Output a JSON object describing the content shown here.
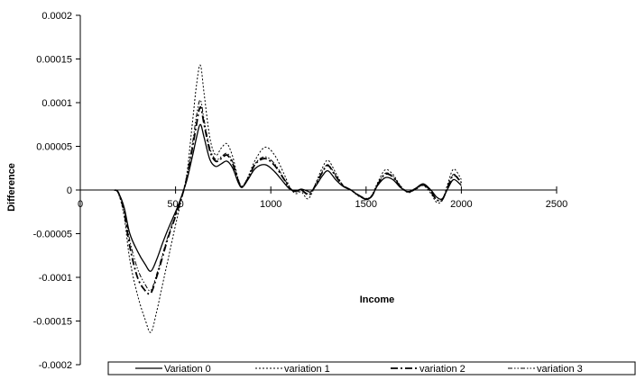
{
  "chart_data": {
    "type": "line",
    "title": "",
    "xlabel": "Income",
    "ylabel": "Difference",
    "xlim": [
      0,
      2500
    ],
    "ylim": [
      -0.0002,
      0.0002
    ],
    "x_ticks": [
      0,
      500,
      1000,
      1500,
      2000,
      2500
    ],
    "x_tick_labels": [
      "0",
      "500",
      "1000",
      "1500",
      "2000",
      "2500"
    ],
    "y_ticks": [
      0.0002,
      0.00015,
      0.0001,
      5e-05,
      0,
      -5e-05,
      -0.0001,
      -0.00015,
      -0.0002
    ],
    "y_tick_labels": [
      "0.0002",
      "0.00015",
      "0.0001",
      "0.00005",
      "0",
      "-0.00005",
      "-0.0001",
      "-0.00015",
      "-0.0002"
    ],
    "grid": false,
    "legend_position": "bottom",
    "x": [
      180,
      200,
      230,
      260,
      300,
      340,
      370,
      400,
      430,
      460,
      500,
      530,
      560,
      590,
      610,
      630,
      650,
      680,
      710,
      740,
      770,
      800,
      830,
      850,
      880,
      920,
      970,
      1020,
      1070,
      1100,
      1130,
      1160,
      1190,
      1210,
      1240,
      1270,
      1300,
      1340,
      1380,
      1420,
      1460,
      1500,
      1530,
      1560,
      1600,
      1640,
      1680,
      1720,
      1760,
      1800,
      1840,
      1870,
      1900,
      1930,
      1960,
      2000
    ],
    "series": [
      {
        "name": "Variation 0",
        "dash": "",
        "stroke_width": 1.3,
        "values": [
          0,
          -3e-06,
          -2e-05,
          -5e-05,
          -7e-05,
          -8.5e-05,
          -9.3e-05,
          -8e-05,
          -6.2e-05,
          -4.5e-05,
          -2.5e-05,
          -8e-06,
          1.2e-05,
          4e-05,
          6e-05,
          7.5e-05,
          6e-05,
          3.5e-05,
          2.7e-05,
          3e-05,
          3.3e-05,
          2.5e-05,
          8e-06,
          3e-06,
          1.2e-05,
          2.5e-05,
          2.9e-05,
          2.1e-05,
          8e-06,
          1e-06,
          -1e-06,
          1e-06,
          -1e-06,
          -2e-06,
          6e-06,
          1.6e-05,
          2.2e-05,
          1.2e-05,
          4e-06,
          0,
          -6e-06,
          -1.1e-05,
          -7e-06,
          5e-06,
          1.4e-05,
          1.2e-05,
          3e-06,
          -2e-06,
          2e-06,
          7e-06,
          0,
          -8e-06,
          -1e-05,
          2e-06,
          1.2e-05,
          5e-06
        ]
      },
      {
        "name": "variation 1",
        "dash": "2 2",
        "stroke_width": 1,
        "values": [
          0,
          -4e-06,
          -3e-05,
          -8e-05,
          -0.00012,
          -0.000148,
          -0.000163,
          -0.00014,
          -0.00011,
          -8e-05,
          -4e-05,
          -1.2e-05,
          2e-05,
          8e-05,
          0.00012,
          0.000143,
          0.00011,
          6e-05,
          4e-05,
          4.8e-05,
          5.3e-05,
          3.8e-05,
          1.2e-05,
          4e-06,
          1.5e-05,
          3.5e-05,
          4.9e-05,
          4e-05,
          1.8e-05,
          3e-06,
          -4e-06,
          -2e-06,
          -1e-05,
          -6e-06,
          1e-05,
          2.5e-05,
          3.4e-05,
          2e-05,
          5e-06,
          0,
          -7e-06,
          -1e-05,
          -6e-06,
          8e-06,
          2.3e-05,
          1.8e-05,
          5e-06,
          -3e-06,
          1e-06,
          5e-06,
          -4e-06,
          -1.4e-05,
          -1.2e-05,
          8e-06,
          2.4e-05,
          1.2e-05
        ]
      },
      {
        "name": "variation 2",
        "dash": "8 3 2 3",
        "stroke_width": 1.8,
        "values": [
          0,
          -3e-06,
          -2.5e-05,
          -6.5e-05,
          -0.0001,
          -0.000115,
          -0.000118,
          -0.0001,
          -7.8e-05,
          -5.5e-05,
          -3e-05,
          -1e-05,
          1.5e-05,
          5e-05,
          7.5e-05,
          9.5e-05,
          7.5e-05,
          4.5e-05,
          3.3e-05,
          3.6e-05,
          4e-05,
          3e-05,
          1e-05,
          4e-06,
          1.3e-05,
          3e-05,
          3.6e-05,
          2.8e-05,
          1.2e-05,
          2e-06,
          -2e-06,
          0,
          -5e-06,
          -4e-06,
          8e-06,
          2e-05,
          2.8e-05,
          1.6e-05,
          5e-06,
          0,
          -6e-06,
          -1e-05,
          -7e-06,
          6e-06,
          1.8e-05,
          1.5e-05,
          4e-06,
          -2e-06,
          1e-06,
          6e-06,
          -2e-06,
          -1.1e-05,
          -1.1e-05,
          4e-06,
          1.7e-05,
          8e-06
        ]
      },
      {
        "name": "variation 3",
        "dash": "5 2 1.5 2 1.5 2",
        "stroke_width": 1,
        "values": [
          0,
          -3e-06,
          -2.2e-05,
          -5.8e-05,
          -9e-05,
          -0.000108,
          -0.000115,
          -9.7e-05,
          -7.5e-05,
          -5.3e-05,
          -2.8e-05,
          -9e-06,
          1.6e-05,
          5.5e-05,
          8.5e-05,
          0.000103,
          8e-05,
          4.8e-05,
          3.5e-05,
          3.8e-05,
          4.2e-05,
          3.2e-05,
          1e-05,
          4e-06,
          1.4e-05,
          3.1e-05,
          3.8e-05,
          3e-05,
          1.3e-05,
          2e-06,
          -2e-06,
          0,
          -4e-06,
          -3e-06,
          8e-06,
          2.1e-05,
          2.9e-05,
          1.7e-05,
          5e-06,
          0,
          -6e-06,
          -1e-05,
          -7e-06,
          6e-06,
          1.9e-05,
          1.6e-05,
          4e-06,
          -2e-06,
          1e-06,
          6e-06,
          -2e-06,
          -1.1e-05,
          -1.1e-05,
          5e-06,
          1.8e-05,
          9e-06
        ]
      }
    ]
  }
}
